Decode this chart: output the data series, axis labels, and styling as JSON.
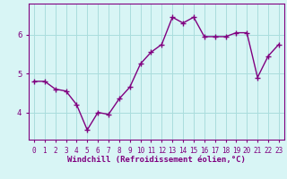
{
  "x": [
    0,
    1,
    2,
    3,
    4,
    5,
    6,
    7,
    8,
    9,
    10,
    11,
    12,
    13,
    14,
    15,
    16,
    17,
    18,
    19,
    20,
    21,
    22,
    23
  ],
  "y": [
    4.8,
    4.8,
    4.6,
    4.55,
    4.2,
    3.55,
    4.0,
    3.95,
    4.35,
    4.65,
    5.25,
    5.55,
    5.75,
    6.45,
    6.3,
    6.45,
    5.95,
    5.95,
    5.95,
    6.05,
    6.05,
    4.9,
    5.45,
    5.75
  ],
  "line_color": "#800080",
  "marker": "+",
  "marker_size": 4,
  "bg_color": "#d8f5f5",
  "grid_color": "#aadddd",
  "axis_label_color": "#800080",
  "tick_label_color": "#800080",
  "xlabel": "Windchill (Refroidissement éolien,°C)",
  "ylabel": "",
  "ylim": [
    3.3,
    6.8
  ],
  "yticks": [
    4,
    5,
    6
  ],
  "xticks": [
    0,
    1,
    2,
    3,
    4,
    5,
    6,
    7,
    8,
    9,
    10,
    11,
    12,
    13,
    14,
    15,
    16,
    17,
    18,
    19,
    20,
    21,
    22,
    23
  ],
  "xtick_labels": [
    "0",
    "1",
    "2",
    "3",
    "4",
    "5",
    "6",
    "7",
    "8",
    "9",
    "10",
    "11",
    "12",
    "13",
    "14",
    "15",
    "16",
    "17",
    "18",
    "19",
    "20",
    "21",
    "22",
    "23"
  ],
  "line_width": 1.0,
  "spine_color": "#800080",
  "xlabel_fontsize": 6.5,
  "tick_fontsize": 5.5,
  "marker_edge_width": 1.0
}
